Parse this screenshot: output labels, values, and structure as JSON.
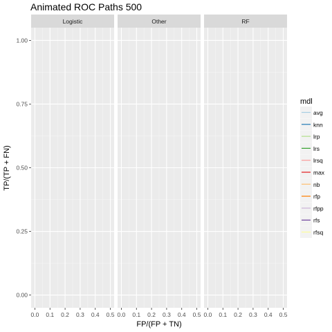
{
  "chart_data": {
    "type": "line",
    "title": "Animated ROC Paths 500",
    "xlabel": "FP/(FP + TN)",
    "ylabel": "TP/(TP + FN)",
    "facets": [
      "Logistic",
      "Other",
      "RF"
    ],
    "xlim": [
      0,
      0.5
    ],
    "ylim": [
      0,
      1
    ],
    "x_ticks": [
      "0.0",
      "0.1",
      "0.2",
      "0.3",
      "0.4",
      "0.5"
    ],
    "y_ticks": [
      "0.00",
      "0.25",
      "0.50",
      "0.75",
      "1.00"
    ],
    "grid": true,
    "legend_title": "mdl",
    "legend_position": "right",
    "series": [
      {
        "name": "avg",
        "color": "#a6cee3",
        "values": []
      },
      {
        "name": "knn",
        "color": "#1f78b4",
        "values": []
      },
      {
        "name": "lrp",
        "color": "#b2df8a",
        "values": []
      },
      {
        "name": "lrs",
        "color": "#33a02c",
        "values": []
      },
      {
        "name": "lrsq",
        "color": "#fb9a99",
        "values": []
      },
      {
        "name": "max",
        "color": "#e31a1c",
        "values": []
      },
      {
        "name": "nb",
        "color": "#fdbf6f",
        "values": []
      },
      {
        "name": "rfp",
        "color": "#ff7f00",
        "values": []
      },
      {
        "name": "rfpp",
        "color": "#cab2d6",
        "values": []
      },
      {
        "name": "rfs",
        "color": "#6a3d9a",
        "values": []
      },
      {
        "name": "rfsq",
        "color": "#ffff99",
        "values": []
      }
    ]
  }
}
